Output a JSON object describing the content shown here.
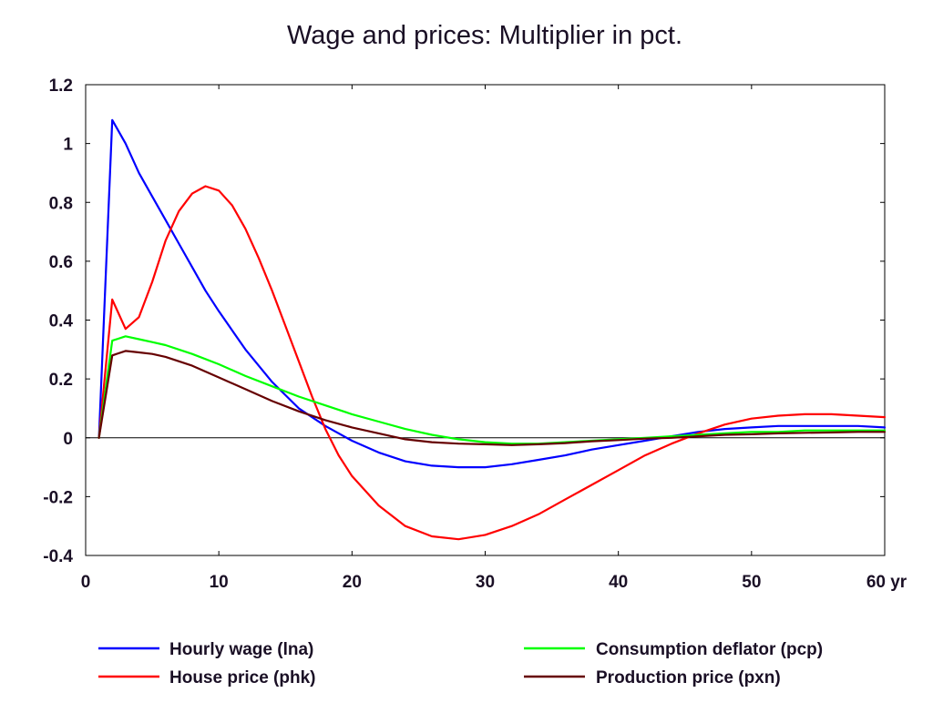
{
  "chart_data": {
    "type": "line",
    "title": "Wage and prices: Multiplier in pct.",
    "xlabel": "",
    "ylabel": "",
    "xlim": [
      0,
      60
    ],
    "ylim": [
      -0.4,
      1.2
    ],
    "x_ticks": [
      0,
      10,
      20,
      30,
      40,
      50,
      60
    ],
    "x_tick_labels": [
      "0",
      "10",
      "20",
      "30",
      "40",
      "50",
      "60 yr"
    ],
    "y_ticks": [
      -0.4,
      -0.2,
      0,
      0.2,
      0.4,
      0.6,
      0.8,
      1,
      1.2
    ],
    "y_tick_labels": [
      "-0.4",
      "-0.2",
      "0",
      "0.2",
      "0.4",
      "0.6",
      "0.8",
      "1",
      "1.2"
    ],
    "grid": false,
    "legend_position": "bottom",
    "series": [
      {
        "name": "Hourly wage (lna)",
        "color": "#0000ff",
        "x": [
          1,
          2,
          3,
          4,
          5,
          6,
          7,
          8,
          9,
          10,
          12,
          14,
          16,
          18,
          20,
          22,
          24,
          26,
          28,
          30,
          32,
          34,
          36,
          38,
          40,
          42,
          44,
          46,
          48,
          50,
          52,
          54,
          56,
          58,
          60
        ],
        "values": [
          0,
          1.08,
          1.0,
          0.9,
          0.82,
          0.74,
          0.66,
          0.58,
          0.5,
          0.43,
          0.3,
          0.19,
          0.1,
          0.04,
          -0.01,
          -0.05,
          -0.08,
          -0.095,
          -0.1,
          -0.1,
          -0.09,
          -0.075,
          -0.06,
          -0.04,
          -0.025,
          -0.01,
          0.005,
          0.02,
          0.03,
          0.035,
          0.04,
          0.04,
          0.04,
          0.04,
          0.035
        ]
      },
      {
        "name": "House price (phk)",
        "color": "#ff0000",
        "x": [
          1,
          2,
          3,
          4,
          5,
          6,
          7,
          8,
          9,
          10,
          11,
          12,
          13,
          14,
          15,
          16,
          17,
          18,
          19,
          20,
          22,
          24,
          26,
          28,
          30,
          32,
          34,
          36,
          38,
          40,
          42,
          44,
          46,
          48,
          50,
          52,
          54,
          56,
          58,
          60
        ],
        "values": [
          0,
          0.47,
          0.37,
          0.41,
          0.53,
          0.67,
          0.77,
          0.83,
          0.855,
          0.84,
          0.79,
          0.71,
          0.61,
          0.5,
          0.38,
          0.26,
          0.14,
          0.03,
          -0.06,
          -0.13,
          -0.23,
          -0.3,
          -0.335,
          -0.345,
          -0.33,
          -0.3,
          -0.26,
          -0.21,
          -0.16,
          -0.11,
          -0.06,
          -0.02,
          0.015,
          0.045,
          0.065,
          0.075,
          0.08,
          0.08,
          0.075,
          0.07
        ]
      },
      {
        "name": "Consumption deflator (pcp)",
        "color": "#00ff00",
        "x": [
          1,
          2,
          3,
          4,
          5,
          6,
          8,
          10,
          12,
          14,
          16,
          18,
          20,
          22,
          24,
          26,
          28,
          30,
          32,
          34,
          36,
          38,
          40,
          42,
          44,
          46,
          48,
          50,
          52,
          54,
          56,
          58,
          60
        ],
        "values": [
          0,
          0.33,
          0.345,
          0.335,
          0.325,
          0.315,
          0.285,
          0.25,
          0.21,
          0.175,
          0.14,
          0.11,
          0.08,
          0.055,
          0.03,
          0.01,
          -0.005,
          -0.015,
          -0.02,
          -0.02,
          -0.015,
          -0.01,
          -0.005,
          0.0,
          0.005,
          0.01,
          0.015,
          0.02,
          0.02,
          0.025,
          0.025,
          0.025,
          0.025
        ]
      },
      {
        "name": "Production price (pxn)",
        "color": "#660000",
        "x": [
          1,
          2,
          3,
          4,
          5,
          6,
          8,
          10,
          12,
          14,
          16,
          18,
          20,
          22,
          24,
          26,
          28,
          30,
          32,
          34,
          36,
          38,
          40,
          42,
          44,
          46,
          48,
          50,
          52,
          54,
          56,
          58,
          60
        ],
        "values": [
          0,
          0.28,
          0.295,
          0.29,
          0.285,
          0.275,
          0.245,
          0.205,
          0.165,
          0.125,
          0.09,
          0.06,
          0.035,
          0.015,
          -0.005,
          -0.015,
          -0.02,
          -0.022,
          -0.025,
          -0.022,
          -0.018,
          -0.012,
          -0.008,
          -0.003,
          0.0,
          0.005,
          0.01,
          0.012,
          0.015,
          0.017,
          0.018,
          0.02,
          0.02
        ]
      }
    ]
  }
}
